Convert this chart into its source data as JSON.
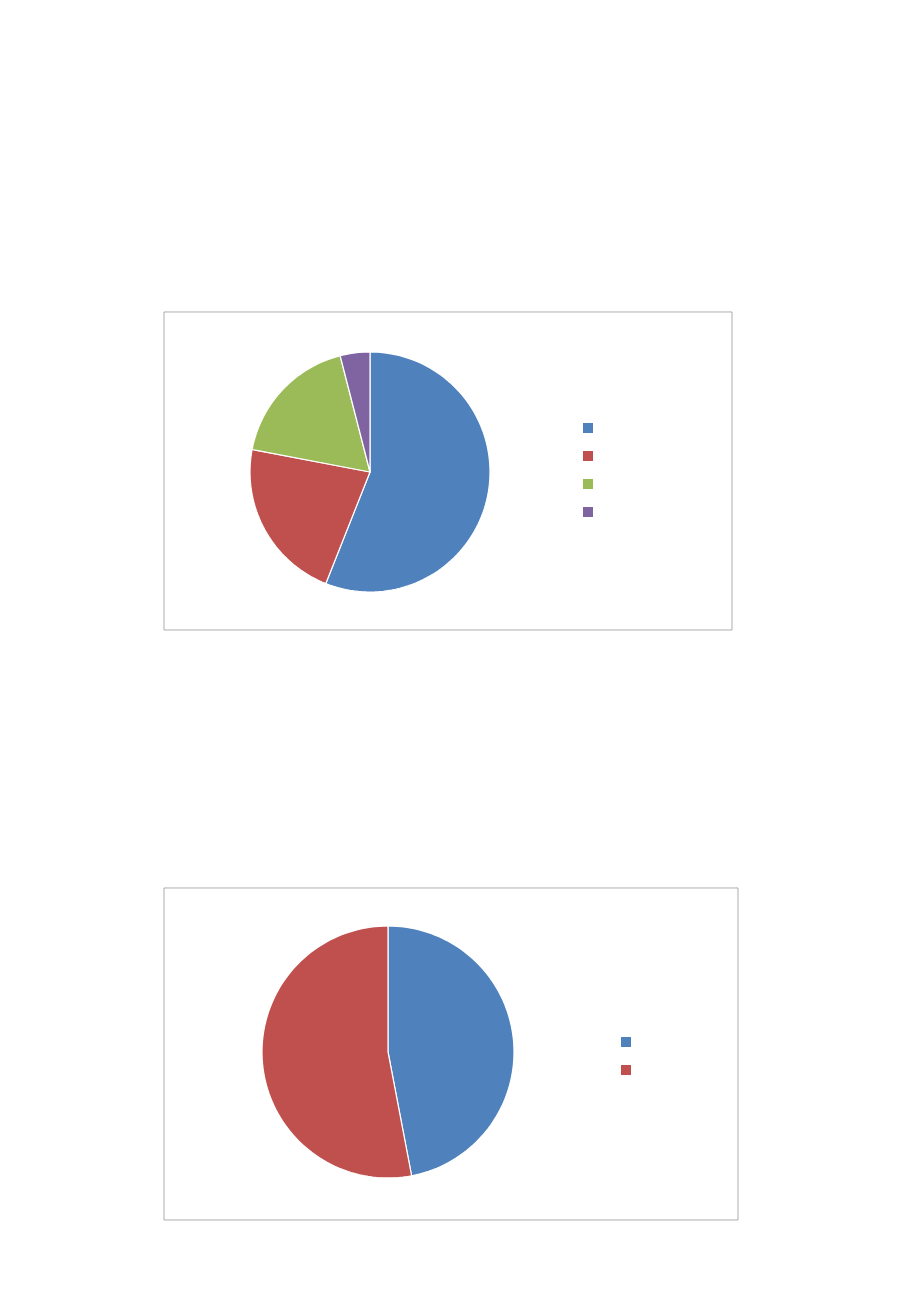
{
  "chart_data": [
    {
      "type": "pie",
      "categories": [
        null,
        null,
        null,
        null
      ],
      "values": [
        56,
        22,
        18,
        4
      ],
      "colors": [
        "#4f81bd",
        "#c0504d",
        "#9bbb59",
        "#8064a2"
      ]
    },
    {
      "type": "pie",
      "categories": [
        null,
        null
      ],
      "values": [
        47,
        53
      ],
      "colors": [
        "#4f81bd",
        "#c0504d"
      ]
    }
  ]
}
